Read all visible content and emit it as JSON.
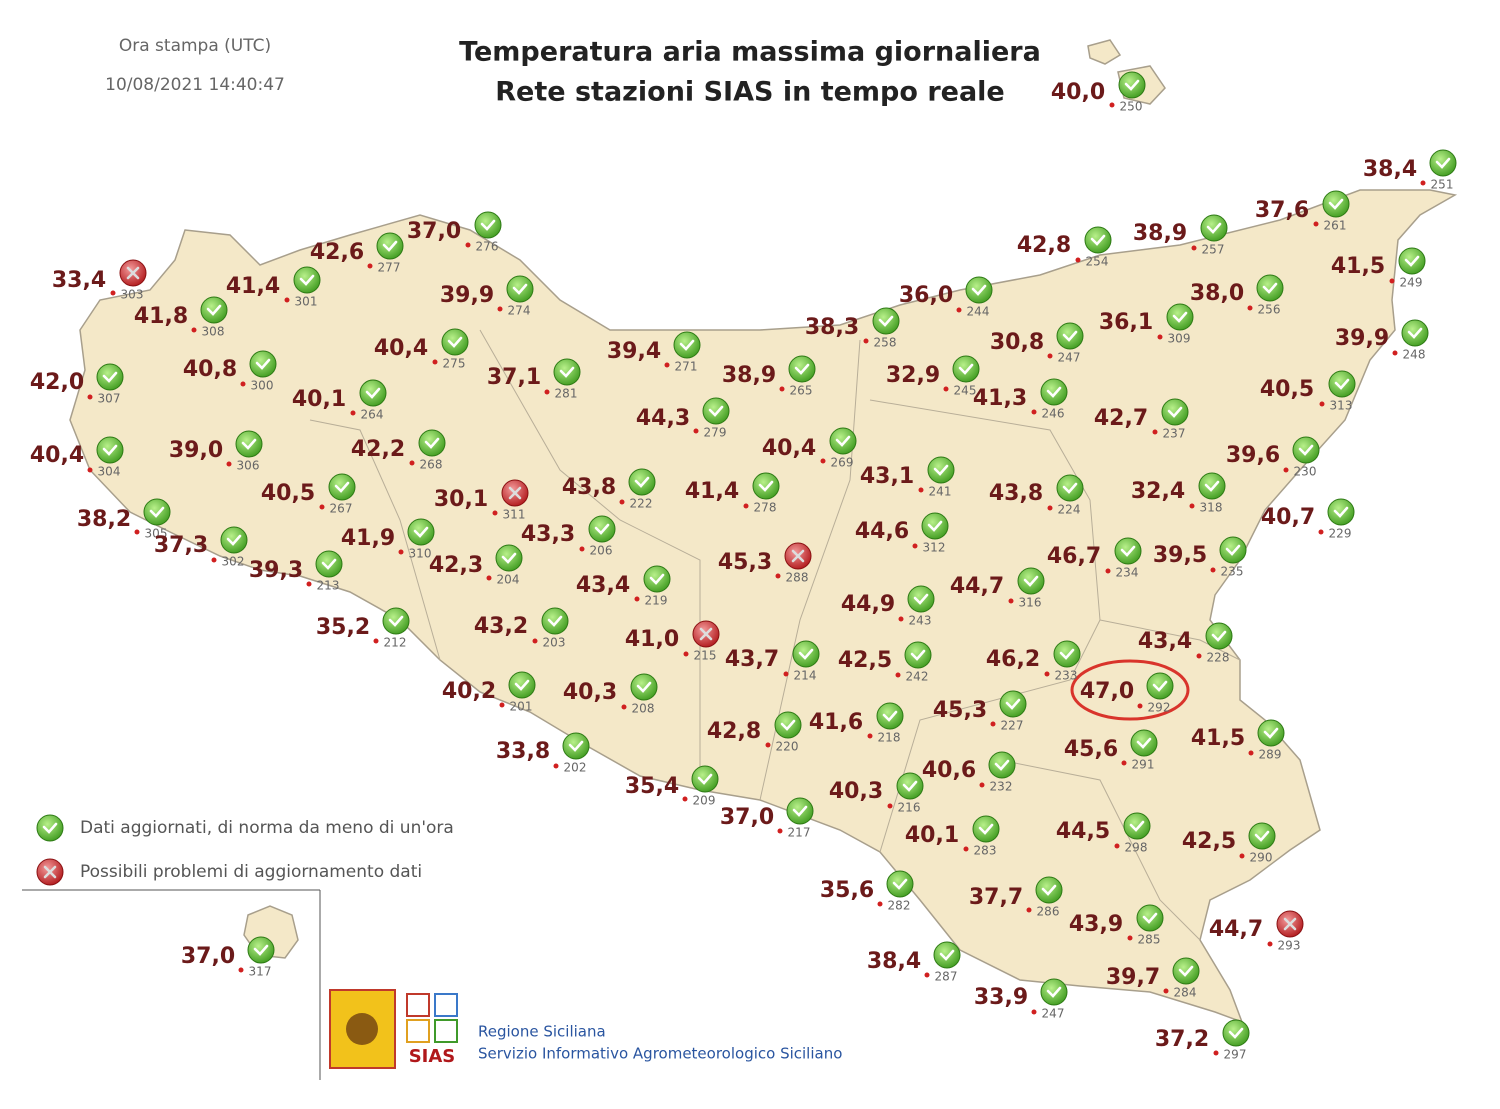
{
  "header": {
    "print_time_label": "Ora stampa (UTC)",
    "print_time": "10/08/2021 14:40:47",
    "title": "Temperatura aria massima giornaliera",
    "subtitle": "Rete stazioni SIAS in tempo reale"
  },
  "stations": [
    {
      "temperature": "40,0",
      "id": "250",
      "status": "ok"
    },
    {
      "temperature": "38,4",
      "id": "251",
      "status": "ok"
    },
    {
      "temperature": "37,6",
      "id": "261",
      "status": "ok"
    },
    {
      "temperature": "41,5",
      "id": "249",
      "status": "ok"
    },
    {
      "temperature": "39,9",
      "id": "248",
      "status": "ok"
    },
    {
      "temperature": "40,5",
      "id": "313",
      "status": "ok"
    },
    {
      "temperature": "39,6",
      "id": "230",
      "status": "ok"
    },
    {
      "temperature": "40,7",
      "id": "229",
      "status": "ok"
    },
    {
      "temperature": "38,9",
      "id": "257",
      "status": "ok"
    },
    {
      "temperature": "42,8",
      "id": "254",
      "status": "ok"
    },
    {
      "temperature": "38,0",
      "id": "256",
      "status": "ok"
    },
    {
      "temperature": "36,0",
      "id": "244",
      "status": "ok"
    },
    {
      "temperature": "36,1",
      "id": "309",
      "status": "ok"
    },
    {
      "temperature": "30,8",
      "id": "247",
      "status": "ok"
    },
    {
      "temperature": "38,3",
      "id": "258",
      "status": "ok"
    },
    {
      "temperature": "32,9",
      "id": "245",
      "status": "ok"
    },
    {
      "temperature": "41,3",
      "id": "246",
      "status": "ok"
    },
    {
      "temperature": "42,7",
      "id": "237",
      "status": "ok"
    },
    {
      "temperature": "43,1",
      "id": "241",
      "status": "ok"
    },
    {
      "temperature": "43,8",
      "id": "224",
      "status": "ok"
    },
    {
      "temperature": "32,4",
      "id": "318",
      "status": "ok"
    },
    {
      "temperature": "44,6",
      "id": "312",
      "status": "ok"
    },
    {
      "temperature": "46,7",
      "id": "234",
      "status": "ok"
    },
    {
      "temperature": "39,5",
      "id": "235",
      "status": "ok"
    },
    {
      "temperature": "44,7",
      "id": "316",
      "status": "ok"
    },
    {
      "temperature": "44,9",
      "id": "243",
      "status": "ok"
    },
    {
      "temperature": "43,4",
      "id": "228",
      "status": "ok"
    },
    {
      "temperature": "46,2",
      "id": "233",
      "status": "ok"
    },
    {
      "temperature": "47,0",
      "id": "292",
      "status": "ok"
    },
    {
      "temperature": "45,3",
      "id": "227",
      "status": "ok"
    },
    {
      "temperature": "45,6",
      "id": "291",
      "status": "ok"
    },
    {
      "temperature": "41,5",
      "id": "289",
      "status": "ok"
    },
    {
      "temperature": "40,6",
      "id": "232",
      "status": "ok"
    },
    {
      "temperature": "44,5",
      "id": "298",
      "status": "ok"
    },
    {
      "temperature": "42,5",
      "id": "290",
      "status": "ok"
    },
    {
      "temperature": "40,1",
      "id": "283",
      "status": "ok"
    },
    {
      "temperature": "37,7",
      "id": "286",
      "status": "ok"
    },
    {
      "temperature": "43,9",
      "id": "285",
      "status": "ok"
    },
    {
      "temperature": "44,7",
      "id": "293",
      "status": "problem"
    },
    {
      "temperature": "35,6",
      "id": "282",
      "status": "ok"
    },
    {
      "temperature": "38,4",
      "id": "287",
      "status": "ok"
    },
    {
      "temperature": "33,9",
      "id": "247",
      "status": "ok"
    },
    {
      "temperature": "39,7",
      "id": "284",
      "status": "ok"
    },
    {
      "temperature": "37,2",
      "id": "297",
      "status": "ok"
    },
    {
      "temperature": "40,3",
      "id": "216",
      "status": "ok"
    },
    {
      "temperature": "41,6",
      "id": "218",
      "status": "ok"
    },
    {
      "temperature": "42,5",
      "id": "242",
      "status": "ok"
    },
    {
      "temperature": "43,7",
      "id": "214",
      "status": "ok"
    },
    {
      "temperature": "42,8",
      "id": "220",
      "status": "ok"
    },
    {
      "temperature": "37,0",
      "id": "217",
      "status": "ok"
    },
    {
      "temperature": "35,4",
      "id": "209",
      "status": "ok"
    },
    {
      "temperature": "45,3",
      "id": "288",
      "status": "problem"
    },
    {
      "temperature": "41,0",
      "id": "215",
      "status": "problem"
    },
    {
      "temperature": "40,3",
      "id": "208",
      "status": "ok"
    },
    {
      "temperature": "33,8",
      "id": "202",
      "status": "ok"
    },
    {
      "temperature": "40,2",
      "id": "201",
      "status": "ok"
    },
    {
      "temperature": "43,2",
      "id": "203",
      "status": "ok"
    },
    {
      "temperature": "43,4",
      "id": "219",
      "status": "ok"
    },
    {
      "temperature": "35,2",
      "id": "212",
      "status": "ok"
    },
    {
      "temperature": "43,3",
      "id": "206",
      "status": "ok"
    },
    {
      "temperature": "43,8",
      "id": "222",
      "status": "ok"
    },
    {
      "temperature": "41,4",
      "id": "278",
      "status": "ok"
    },
    {
      "temperature": "40,4",
      "id": "269",
      "status": "ok"
    },
    {
      "temperature": "44,3",
      "id": "279",
      "status": "ok"
    },
    {
      "temperature": "38,9",
      "id": "265",
      "status": "ok"
    },
    {
      "temperature": "39,4",
      "id": "271",
      "status": "ok"
    },
    {
      "temperature": "37,1",
      "id": "281",
      "status": "ok"
    },
    {
      "temperature": "30,1",
      "id": "311",
      "status": "problem"
    },
    {
      "temperature": "42,3",
      "id": "204",
      "status": "ok"
    },
    {
      "temperature": "41,9",
      "id": "310",
      "status": "ok"
    },
    {
      "temperature": "39,3",
      "id": "213",
      "status": "ok"
    },
    {
      "temperature": "40,5",
      "id": "267",
      "status": "ok"
    },
    {
      "temperature": "42,2",
      "id": "268",
      "status": "ok"
    },
    {
      "temperature": "40,1",
      "id": "264",
      "status": "ok"
    },
    {
      "temperature": "40,4",
      "id": "275",
      "status": "ok"
    },
    {
      "temperature": "39,9",
      "id": "274",
      "status": "ok"
    },
    {
      "temperature": "37,0",
      "id": "276",
      "status": "ok"
    },
    {
      "temperature": "42,6",
      "id": "277",
      "status": "ok"
    },
    {
      "temperature": "41,4",
      "id": "301",
      "status": "ok"
    },
    {
      "temperature": "33,4",
      "id": "303",
      "status": "problem"
    },
    {
      "temperature": "41,8",
      "id": "308",
      "status": "ok"
    },
    {
      "temperature": "40,8",
      "id": "300",
      "status": "ok"
    },
    {
      "temperature": "42,0",
      "id": "307",
      "status": "ok"
    },
    {
      "temperature": "40,4",
      "id": "304",
      "status": "ok"
    },
    {
      "temperature": "39,0",
      "id": "306",
      "status": "ok"
    },
    {
      "temperature": "38,2",
      "id": "305",
      "status": "ok"
    },
    {
      "temperature": "37,3",
      "id": "302",
      "status": "ok"
    },
    {
      "temperature": "37,0",
      "id": "317",
      "status": "ok"
    }
  ],
  "legend": {
    "ok": "Dati aggiornati, di norma da meno di un'ora",
    "problem": "Possibili problemi di aggiornamento dati"
  },
  "footer": {
    "logo_text": "SIAS",
    "org_line1": "Regione Siciliana",
    "org_line2": "Servizio Informativo Agrometeorologico Siciliano"
  }
}
